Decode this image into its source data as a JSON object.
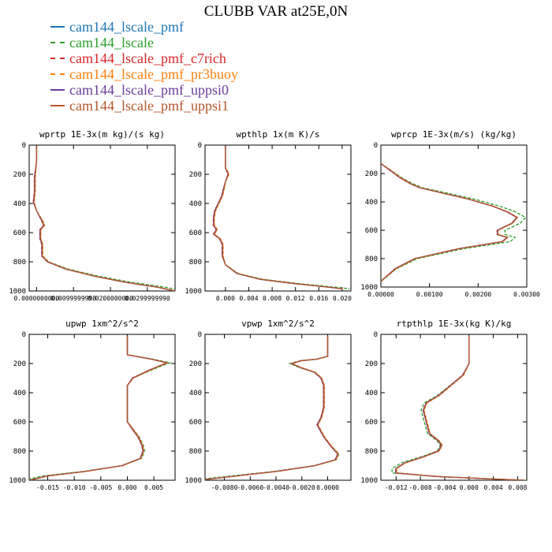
{
  "figure": {
    "title": "CLUBB VAR at25E,0N",
    "legend": [
      {
        "label": "cam144_lscale_pmf",
        "color": "#1f77b4",
        "dash": "solid"
      },
      {
        "label": "cam144_lscale",
        "color": "#2ca02c",
        "dash": "dashed"
      },
      {
        "label": "cam144_lscale_pmf_c7rich",
        "color": "#d62728",
        "dash": "dashed"
      },
      {
        "label": "cam144_lscale_pmf_pr3buoy",
        "color": "#ff7f0e",
        "dash": "dashed"
      },
      {
        "label": "cam144_lscale_pmf_uppsi0",
        "color": "#6a3d9a",
        "dash": "solid"
      },
      {
        "label": "cam144_lscale_pmf_uppsi1",
        "color": "#b5562d",
        "dash": "solid"
      }
    ]
  },
  "chart_data": [
    {
      "type": "line",
      "title": "wprtp  1E-3x(m kg)/(s kg)",
      "xlim": [
        -0.002,
        0.0375
      ],
      "ylim": [
        1000,
        0
      ],
      "xticks": [
        0.0,
        0.01,
        0.02,
        0.03
      ],
      "xticklabels": [
        "0.0000000000",
        "0.0099999998",
        "0.0200000000",
        "0.0299999990"
      ],
      "yticks": [
        0,
        200,
        400,
        600,
        800,
        1000
      ],
      "series": [
        {
          "values": [
            [
              0.0,
              10
            ],
            [
              0.0,
              110
            ],
            [
              -0.0005,
              220
            ],
            [
              -0.0005,
              320
            ],
            [
              -0.0008,
              390
            ],
            [
              0.0,
              450
            ],
            [
              0.0015,
              520
            ],
            [
              0.002,
              550
            ],
            [
              0.001,
              580
            ],
            [
              0.001,
              640
            ],
            [
              0.0015,
              680
            ],
            [
              0.0015,
              760
            ],
            [
              0.003,
              800
            ],
            [
              0.008,
              850
            ],
            [
              0.016,
              900
            ],
            [
              0.024,
              940
            ],
            [
              0.033,
              975
            ],
            [
              0.0375,
              1000
            ]
          ]
        }
      ]
    },
    {
      "type": "line",
      "title": "wpthlp  1x(m K)/s",
      "xlim": [
        -0.0035,
        0.0215
      ],
      "ylim": [
        1000,
        0
      ],
      "xticks": [
        0.0,
        0.004,
        0.008,
        0.012,
        0.016,
        0.02
      ],
      "xticklabels": [
        "0.000",
        "0.004",
        "0.008",
        "0.012",
        "0.016",
        "0.020"
      ],
      "yticks": [
        0,
        200,
        400,
        600,
        800,
        1000
      ],
      "series": [
        {
          "values": [
            [
              0.0,
              10
            ],
            [
              0.0,
              160
            ],
            [
              0.0003,
              180
            ],
            [
              0.0005,
              200
            ],
            [
              0.0,
              250
            ],
            [
              -0.0003,
              300
            ],
            [
              -0.0006,
              350
            ],
            [
              -0.0012,
              400
            ],
            [
              -0.0018,
              450
            ],
            [
              -0.002,
              500
            ],
            [
              -0.002,
              550
            ],
            [
              -0.0015,
              580
            ],
            [
              -0.002,
              610
            ],
            [
              -0.001,
              640
            ],
            [
              -0.0005,
              680
            ],
            [
              -0.0005,
              760
            ],
            [
              0.0,
              820
            ],
            [
              0.002,
              880
            ],
            [
              0.006,
              920
            ],
            [
              0.012,
              950
            ],
            [
              0.018,
              975
            ],
            [
              0.02,
              985
            ]
          ]
        }
      ]
    },
    {
      "type": "line",
      "title": "wprcp  1E-3x(m/s) (kg/kg)",
      "xlim": [
        0.0,
        0.003
      ],
      "ylim": [
        1000,
        0
      ],
      "xticks": [
        0.0,
        0.001,
        0.002,
        0.003
      ],
      "xticklabels": [
        "0.00000",
        "0.00100",
        "0.00200",
        "0.00300"
      ],
      "yticks": [
        0,
        200,
        400,
        600,
        800,
        1000
      ],
      "series": [
        {
          "values": [
            [
              0.0,
              130
            ],
            [
              0.0002,
              180
            ],
            [
              0.0004,
              230
            ],
            [
              0.0006,
              270
            ],
            [
              0.0008,
              300
            ],
            [
              0.0013,
              340
            ],
            [
              0.0018,
              380
            ],
            [
              0.0023,
              430
            ],
            [
              0.0026,
              470
            ],
            [
              0.0028,
              510
            ],
            [
              0.0027,
              550
            ],
            [
              0.0024,
              600
            ],
            [
              0.0024,
              630
            ],
            [
              0.0026,
              650
            ],
            [
              0.0025,
              680
            ],
            [
              0.0016,
              730
            ],
            [
              0.0007,
              800
            ],
            [
              0.0003,
              870
            ],
            [
              0.0,
              960
            ]
          ]
        }
      ]
    },
    {
      "type": "line",
      "title": "upwp  1xm^2/s^2",
      "xlim": [
        -0.0185,
        0.009
      ],
      "ylim": [
        1000,
        0
      ],
      "xticks": [
        -0.015,
        -0.01,
        -0.005,
        0.0,
        0.005
      ],
      "xticklabels": [
        "-0.015",
        "-0.010",
        "-0.005",
        "0.000",
        "0.005"
      ],
      "yticks": [
        0,
        200,
        400,
        600,
        800,
        1000
      ],
      "series": [
        {
          "values": [
            [
              0.0,
              10
            ],
            [
              0.0,
              140
            ],
            [
              0.0045,
              170
            ],
            [
              0.0075,
              195
            ],
            [
              0.0045,
              240
            ],
            [
              0.001,
              300
            ],
            [
              0.0,
              350
            ],
            [
              0.0,
              450
            ],
            [
              0.0,
              550
            ],
            [
              0.0,
              600
            ],
            [
              0.001,
              650
            ],
            [
              0.002,
              700
            ],
            [
              0.0028,
              760
            ],
            [
              0.003,
              800
            ],
            [
              0.0025,
              850
            ],
            [
              -0.001,
              900
            ],
            [
              -0.008,
              940
            ],
            [
              -0.015,
              970
            ],
            [
              -0.0185,
              1000
            ]
          ]
        }
      ]
    },
    {
      "type": "line",
      "title": "vpwp  1xm^2/s^2",
      "xlim": [
        -0.0095,
        0.0018
      ],
      "ylim": [
        1000,
        0
      ],
      "xticks": [
        -0.008,
        -0.006,
        -0.004,
        -0.002,
        0.0
      ],
      "xticklabels": [
        "-0.0080",
        "-0.0060",
        "-0.0040",
        "-0.0020",
        "0.0000"
      ],
      "yticks": [
        0,
        200,
        400,
        600,
        800,
        1000
      ],
      "series": [
        {
          "values": [
            [
              0.0,
              10
            ],
            [
              0.0,
              150
            ],
            [
              -0.0008,
              170
            ],
            [
              -0.002,
              180
            ],
            [
              -0.0028,
              200
            ],
            [
              -0.002,
              230
            ],
            [
              -0.001,
              260
            ],
            [
              -0.0005,
              300
            ],
            [
              -0.0003,
              350
            ],
            [
              -0.0003,
              500
            ],
            [
              -0.0005,
              570
            ],
            [
              -0.0008,
              620
            ],
            [
              -0.0003,
              700
            ],
            [
              0.0002,
              760
            ],
            [
              0.0008,
              820
            ],
            [
              0.0006,
              860
            ],
            [
              -0.001,
              900
            ],
            [
              -0.004,
              940
            ],
            [
              -0.0075,
              975
            ],
            [
              -0.0095,
              995
            ]
          ]
        }
      ]
    },
    {
      "type": "line",
      "title": "rtpthlp  1E-3x(kg K)/kg",
      "xlim": [
        -0.0145,
        0.0095
      ],
      "ylim": [
        1000,
        0
      ],
      "xticks": [
        -0.012,
        -0.008,
        -0.004,
        0.0,
        0.004,
        0.008
      ],
      "xticklabels": [
        "-0.012",
        "-0.008",
        "-0.004",
        "0.000",
        "0.004",
        "0.008"
      ],
      "yticks": [
        0,
        200,
        400,
        600,
        800,
        1000
      ],
      "series": [
        {
          "values": [
            [
              0.0,
              10
            ],
            [
              0.0,
              120
            ],
            [
              0.0,
              200
            ],
            [
              -0.001,
              280
            ],
            [
              -0.003,
              350
            ],
            [
              -0.005,
              420
            ],
            [
              -0.007,
              470
            ],
            [
              -0.0075,
              520
            ],
            [
              -0.007,
              600
            ],
            [
              -0.0065,
              680
            ],
            [
              -0.005,
              730
            ],
            [
              -0.0045,
              760
            ],
            [
              -0.005,
              800
            ],
            [
              -0.0075,
              840
            ],
            [
              -0.0105,
              880
            ],
            [
              -0.012,
              920
            ],
            [
              -0.012,
              950
            ],
            [
              -0.005,
              975
            ],
            [
              0.003,
              990
            ],
            [
              0.009,
              1000
            ]
          ]
        }
      ]
    }
  ]
}
